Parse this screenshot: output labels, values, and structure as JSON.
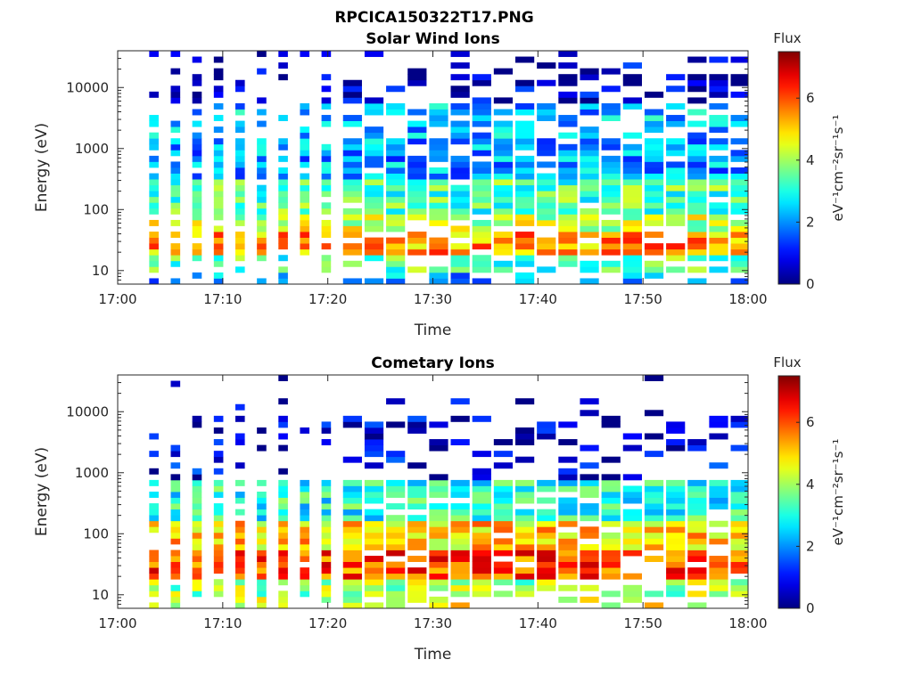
{
  "figure_title": "RPCICA150322T17.PNG",
  "chart_data": [
    {
      "type": "heatmap",
      "title": "Solar Wind Ions",
      "xlabel": "Time",
      "ylabel": "Energy (eV)",
      "x_ticks": [
        "17:00",
        "17:10",
        "17:20",
        "17:30",
        "17:40",
        "17:50",
        "18:00"
      ],
      "xlim": [
        "17:00",
        "18:00"
      ],
      "y_scale": "log",
      "y_ticks": [
        "10",
        "100",
        "1000",
        "10000"
      ],
      "ylim": [
        6,
        40000
      ],
      "colorbar": {
        "label": "Flux",
        "units": "eV⁻¹cm⁻²sr⁻¹s⁻¹",
        "ticks": [
          "0",
          "2",
          "4",
          "6"
        ],
        "range": [
          0,
          7.5
        ],
        "colormap": "jet"
      },
      "profile": {
        "bands": [
          {
            "e_lo": 6,
            "e_hi": 10,
            "level": 2.2,
            "density": 0.45
          },
          {
            "e_lo": 10,
            "e_hi": 18,
            "level": 3.4,
            "density": 0.7
          },
          {
            "e_lo": 18,
            "e_hi": 40,
            "level": 5.4,
            "density": 0.85
          },
          {
            "e_lo": 40,
            "e_hi": 90,
            "level": 4.3,
            "density": 0.8
          },
          {
            "e_lo": 90,
            "e_hi": 320,
            "level": 3.4,
            "density": 0.92
          },
          {
            "e_lo": 320,
            "e_hi": 1500,
            "level": 2.1,
            "density": 0.85
          },
          {
            "e_lo": 1500,
            "e_hi": 6000,
            "level": 2.3,
            "density": 0.55
          },
          {
            "e_lo": 6000,
            "e_hi": 40000,
            "level": 0.5,
            "density": 0.35
          }
        ]
      }
    },
    {
      "type": "heatmap",
      "title": "Cometary Ions",
      "xlabel": "Time",
      "ylabel": "Energy (eV)",
      "x_ticks": [
        "17:00",
        "17:10",
        "17:20",
        "17:30",
        "17:40",
        "17:50",
        "18:00"
      ],
      "xlim": [
        "17:00",
        "18:00"
      ],
      "y_scale": "log",
      "y_ticks": [
        "10",
        "100",
        "1000",
        "10000"
      ],
      "ylim": [
        6,
        40000
      ],
      "colorbar": {
        "label": "Flux",
        "units": "eV⁻¹cm⁻²sr⁻¹s⁻¹",
        "ticks": [
          "0",
          "2",
          "4",
          "6"
        ],
        "range": [
          0,
          7.5
        ],
        "colormap": "jet"
      },
      "profile": {
        "bands": [
          {
            "e_lo": 6,
            "e_hi": 10,
            "level": 4.5,
            "density": 0.5
          },
          {
            "e_lo": 10,
            "e_hi": 18,
            "level": 4.0,
            "density": 0.85
          },
          {
            "e_lo": 18,
            "e_hi": 50,
            "level": 6.0,
            "density": 0.9
          },
          {
            "e_lo": 50,
            "e_hi": 150,
            "level": 5.0,
            "density": 0.95
          },
          {
            "e_lo": 150,
            "e_hi": 700,
            "level": 3.0,
            "density": 0.92
          },
          {
            "e_lo": 700,
            "e_hi": 2000,
            "level": 0.8,
            "density": 0.3
          },
          {
            "e_lo": 2000,
            "e_hi": 8000,
            "level": 0.6,
            "density": 0.35
          },
          {
            "e_lo": 8000,
            "e_hi": 40000,
            "level": 0.5,
            "density": 0.08
          }
        ]
      }
    }
  ]
}
